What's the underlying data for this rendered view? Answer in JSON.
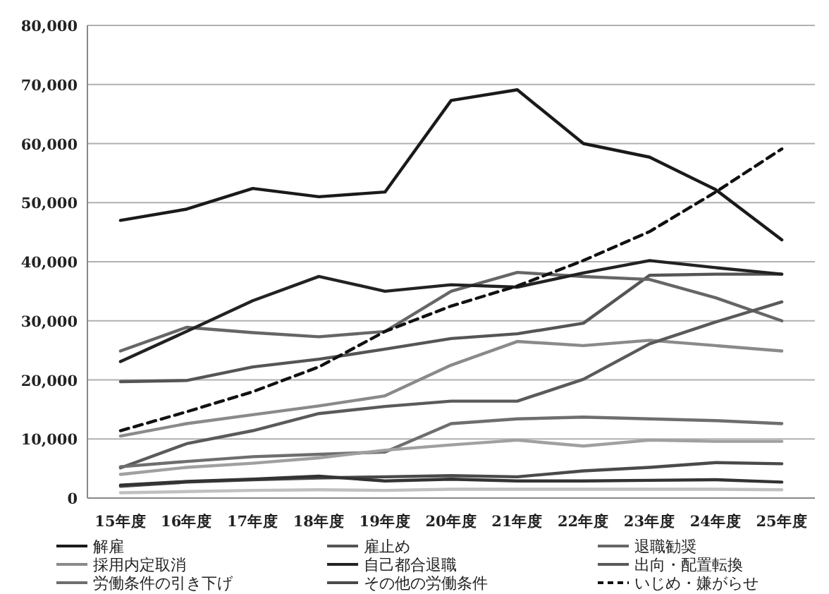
{
  "chart_data": {
    "type": "line",
    "categories": [
      "15年度",
      "16年度",
      "17年度",
      "18年度",
      "19年度",
      "20年度",
      "21年度",
      "22年度",
      "23年度",
      "24年度",
      "25年度"
    ],
    "ylim": [
      0,
      80000
    ],
    "yticks": [
      0,
      {
        "value": 10000,
        "label": "10,000"
      },
      {
        "value": 20000,
        "label": "20,000"
      },
      {
        "value": 30000,
        "label": "30,000"
      },
      {
        "value": 40000,
        "label": "40,000"
      },
      {
        "value": 50000,
        "label": "50,000"
      },
      {
        "value": 60000,
        "label": "60,000"
      },
      {
        "value": 70000,
        "label": "70,000"
      },
      {
        "value": 80000,
        "label": "80,000"
      }
    ],
    "grid": "y",
    "legend": "bottom",
    "series": [
      {
        "name": "解雇",
        "color": "#1a1a1a",
        "values": [
          47000,
          48900,
          52400,
          51000,
          51800,
          67300,
          69100,
          60000,
          57700,
          52200,
          43700
        ]
      },
      {
        "name": "雇止め",
        "color": "#555555",
        "values": [
          19700,
          19900,
          22200,
          23500,
          25200,
          27000,
          27800,
          29600,
          37700,
          37900,
          37900
        ]
      },
      {
        "name": "退職勧奨",
        "color": "#666666",
        "values": [
          24900,
          28900,
          28000,
          27300,
          28200,
          35000,
          38200,
          37500,
          37000,
          33900,
          30000
        ]
      },
      {
        "name": "採用内定取消",
        "color": "#8a8a8a",
        "values": [
          10500,
          12600,
          14100,
          15600,
          17300,
          22500,
          26500,
          25800,
          26700,
          25800,
          24900
        ]
      },
      {
        "name": "自己都合退職",
        "color": "#222222",
        "values": [
          23100,
          28200,
          33400,
          37500,
          35000,
          36100,
          35700,
          38100,
          40200,
          39000,
          37900
        ]
      },
      {
        "name": "出向・配置転換",
        "color": "#5a5a5a",
        "values": [
          5100,
          9200,
          11400,
          14300,
          15500,
          16400,
          16400,
          20100,
          26100,
          29800,
          33200
        ]
      },
      {
        "name": "労働条件の引き下げ",
        "color": "#6e6e6e",
        "values": [
          5300,
          6200,
          7000,
          7400,
          7800,
          12600,
          13400,
          13700,
          13400,
          13100,
          12600
        ]
      },
      {
        "name": "その他の労働条件",
        "color": "#4a4a4a",
        "values": [
          2000,
          2700,
          3100,
          3400,
          3600,
          3800,
          3600,
          4600,
          5200,
          6000,
          5800
        ]
      },
      {
        "name": "いじめ・嫌がらせ",
        "color": "#111111",
        "line_style": "dashed",
        "values": [
          11400,
          14600,
          18000,
          22200,
          28200,
          32500,
          35900,
          40200,
          45100,
          51800,
          59100
        ]
      },
      {
        "color": "#a0a0a0",
        "values": [
          4000,
          5200,
          5900,
          6800,
          8100,
          9000,
          9800,
          8800,
          9800,
          9600,
          9600
        ]
      },
      {
        "color": "#333333",
        "values": [
          2200,
          2800,
          3200,
          3700,
          2900,
          3200,
          2900,
          2900,
          3000,
          3100,
          2700
        ]
      },
      {
        "color": "#c0c0c0",
        "values": [
          900,
          1100,
          1300,
          1400,
          1300,
          1500,
          1500,
          1500,
          1500,
          1500,
          1400
        ]
      }
    ]
  }
}
